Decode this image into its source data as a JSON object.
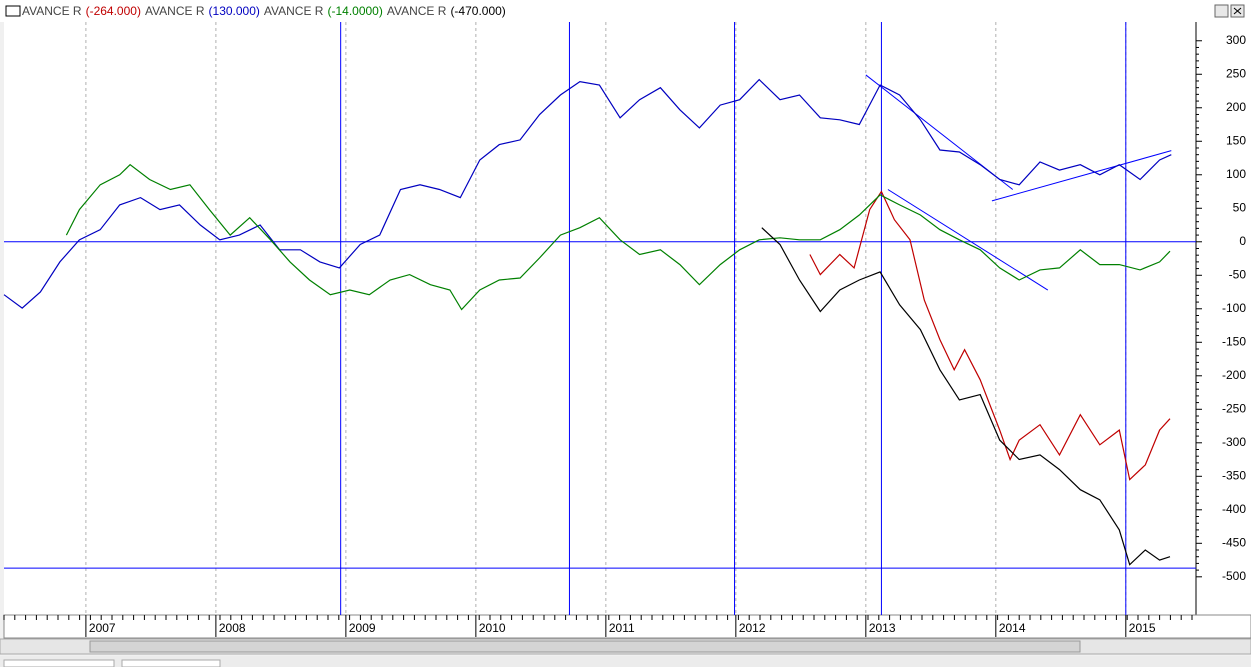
{
  "chart_data": {
    "type": "line",
    "series": [
      {
        "name": "AVANCE R",
        "label": "(-264.000)",
        "color": "#c00000",
        "x": [
          2012.57,
          2012.65,
          2012.8,
          2012.91,
          2013.03,
          2013.12,
          2013.22,
          2013.34,
          2013.45,
          2013.57,
          2013.68,
          2013.76,
          2013.88,
          2014.03,
          2014.11,
          2014.18,
          2014.34,
          2014.49,
          2014.65,
          2014.8,
          2014.95,
          2015.03,
          2015.15,
          2015.26,
          2015.34
        ],
        "values": [
          -19,
          -49,
          -19,
          -39,
          48,
          75,
          33,
          3,
          -87,
          -146,
          -191,
          -161,
          -206,
          -281,
          -325,
          -296,
          -273,
          -318,
          -258,
          -303,
          -281,
          -355,
          -333,
          -281,
          -264
        ]
      },
      {
        "name": "AVANCE R",
        "label": "(130.000)",
        "color": "#0000c0",
        "x": [
          2006.37,
          2006.51,
          2006.65,
          2006.8,
          2006.95,
          2007.11,
          2007.26,
          2007.42,
          2007.57,
          2007.72,
          2007.88,
          2008.03,
          2008.18,
          2008.34,
          2008.49,
          2008.65,
          2008.8,
          2008.95,
          2009.11,
          2009.26,
          2009.42,
          2009.57,
          2009.72,
          2009.88,
          2010.03,
          2010.18,
          2010.34,
          2010.49,
          2010.65,
          2010.8,
          2010.95,
          2011.11,
          2011.26,
          2011.42,
          2011.57,
          2011.72,
          2011.88,
          2012.03,
          2012.18,
          2012.34,
          2012.49,
          2012.65,
          2012.8,
          2012.95,
          2013.11,
          2013.26,
          2013.42,
          2013.57,
          2013.72,
          2013.88,
          2014.03,
          2014.18,
          2014.34,
          2014.49,
          2014.65,
          2014.8,
          2014.95,
          2015.11,
          2015.26,
          2015.35
        ],
        "values": [
          -79,
          -99,
          -75,
          -30,
          3,
          18,
          55,
          66,
          48,
          55,
          25,
          3,
          10,
          25,
          -12,
          -12,
          -30,
          -39,
          -4,
          10,
          78,
          85,
          78,
          66,
          122,
          145,
          152,
          190,
          219,
          239,
          234,
          185,
          212,
          230,
          197,
          170,
          204,
          212,
          242,
          212,
          219,
          185,
          182,
          175,
          234,
          219,
          182,
          137,
          134,
          115,
          93,
          85,
          119,
          107,
          115,
          100,
          115,
          93,
          122,
          130
        ]
      },
      {
        "name": "AVANCE R",
        "label": "(-14.0000)",
        "color": "#008000",
        "x": [
          2006.85,
          2006.95,
          2007.11,
          2007.26,
          2007.34,
          2007.49,
          2007.65,
          2007.8,
          2007.95,
          2008.11,
          2008.26,
          2008.42,
          2008.57,
          2008.72,
          2008.88,
          2009.03,
          2009.18,
          2009.34,
          2009.49,
          2009.65,
          2009.8,
          2009.89,
          2010.03,
          2010.18,
          2010.34,
          2010.49,
          2010.65,
          2010.8,
          2010.95,
          2011.11,
          2011.26,
          2011.42,
          2011.57,
          2011.72,
          2011.88,
          2012.03,
          2012.18,
          2012.34,
          2012.49,
          2012.65,
          2012.8,
          2012.95,
          2013.11,
          2013.26,
          2013.42,
          2013.57,
          2013.72,
          2013.88,
          2014.03,
          2014.18,
          2014.34,
          2014.49,
          2014.65,
          2014.8,
          2014.95,
          2015.11,
          2015.26,
          2015.34
        ],
        "values": [
          10,
          48,
          85,
          100,
          115,
          93,
          78,
          85,
          48,
          10,
          36,
          3,
          -30,
          -57,
          -79,
          -72,
          -79,
          -57,
          -49,
          -64,
          -72,
          -101,
          -72,
          -57,
          -54,
          -24,
          10,
          21,
          36,
          3,
          -19,
          -12,
          -34,
          -64,
          -34,
          -12,
          3,
          6,
          3,
          3,
          18,
          40,
          70,
          55,
          40,
          18,
          3,
          -12,
          -39,
          -57,
          -42,
          -39,
          -12,
          -34,
          -34,
          -42,
          -30,
          -14
        ]
      },
      {
        "name": "AVANCE R",
        "label": "(-470.000)",
        "color": "#000000",
        "x": [
          2012.2,
          2012.34,
          2012.49,
          2012.65,
          2012.8,
          2012.95,
          2013.11,
          2013.26,
          2013.42,
          2013.57,
          2013.72,
          2013.88,
          2014.03,
          2014.18,
          2014.34,
          2014.49,
          2014.65,
          2014.8,
          2014.95,
          2015.03,
          2015.15,
          2015.26,
          2015.34
        ],
        "values": [
          21,
          -4,
          -57,
          -104,
          -72,
          -57,
          -45,
          -94,
          -131,
          -191,
          -236,
          -228,
          -296,
          -325,
          -318,
          -340,
          -370,
          -385,
          -430,
          -482,
          -460,
          -475,
          -470
        ]
      }
    ],
    "xlim": [
      2006.37,
      2015.54
    ],
    "xticks": [
      2007,
      2008,
      2009,
      2010,
      2011,
      2012,
      2013,
      2014,
      2015
    ],
    "ylim": [
      -557,
      328
    ],
    "yticks": [
      300,
      250,
      200,
      150,
      100,
      50,
      0,
      -50,
      -100,
      -150,
      -200,
      -250,
      -300,
      -350,
      -400,
      -450,
      -500
    ],
    "grid": true,
    "annotation_color": "#0000ff",
    "vlines": [
      2008.96,
      2010.72,
      2011.99,
      2013.12,
      2015.0
    ],
    "hlines": [
      0,
      -487
    ],
    "trendlines": [
      {
        "x": [
          2013.0,
          2014.13
        ],
        "y": [
          249,
          78
        ]
      },
      {
        "x": [
          2013.97,
          2015.35
        ],
        "y": [
          61,
          136
        ]
      },
      {
        "x": [
          2013.17,
          2014.4
        ],
        "y": [
          78,
          -72
        ]
      }
    ]
  }
}
